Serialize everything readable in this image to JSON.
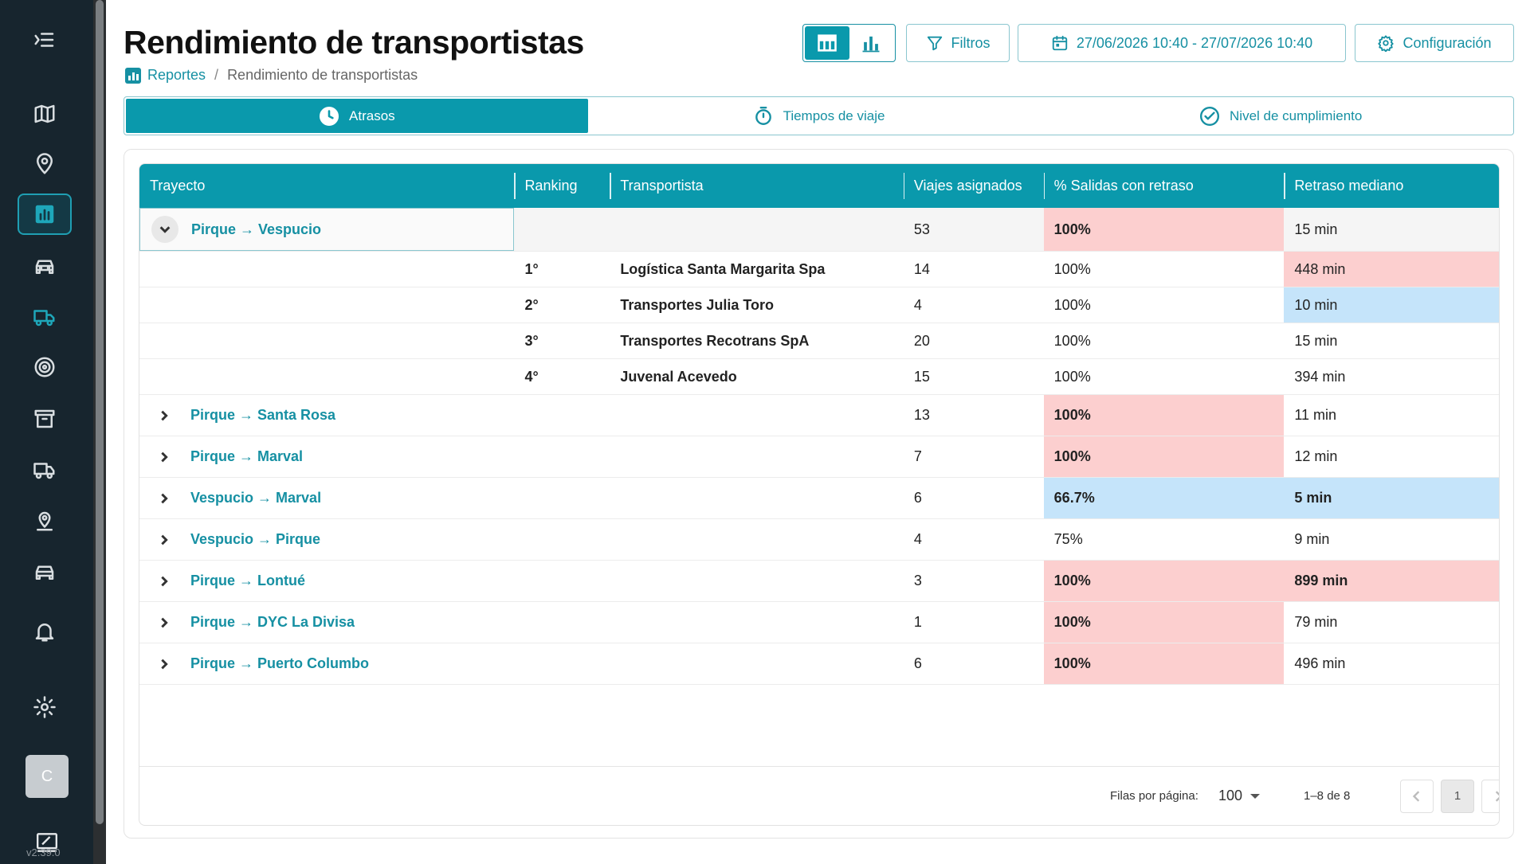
{
  "sidebar": {
    "menu_icon": "menu-collapse-icon",
    "items": [
      {
        "icon": "map-icon"
      },
      {
        "icon": "location-pin-icon"
      },
      {
        "icon": "bar-chart-icon",
        "active": true
      },
      {
        "icon": "car-icon"
      },
      {
        "icon": "truck-icon"
      },
      {
        "icon": "target-icon"
      },
      {
        "icon": "archive-icon"
      },
      {
        "icon": "delivery-truck-icon"
      },
      {
        "icon": "map-marker-icon"
      },
      {
        "icon": "vehicle-icon"
      },
      {
        "icon": "bell-icon"
      },
      {
        "icon": "gear-icon"
      }
    ],
    "avatar_letter": "C",
    "version": "v2.39.0"
  },
  "header": {
    "title": "Rendimiento de transportistas",
    "breadcrumb": {
      "root": "Reportes",
      "separator": "/",
      "current": "Rendimiento de transportistas"
    }
  },
  "toolbar": {
    "filters_label": "Filtros",
    "date_range": "27/06/2026 10:40 - 27/07/2026 10:40",
    "config_label": "Configuración"
  },
  "tabs": [
    {
      "label": "Atrasos",
      "active": true
    },
    {
      "label": "Tiempos de viaje"
    },
    {
      "label": "Nivel de cumplimiento"
    }
  ],
  "table": {
    "columns": [
      "Trayecto",
      "Ranking",
      "Transportista",
      "Viajes asignados",
      "% Salidas con retraso",
      "Retraso mediano"
    ],
    "groups": [
      {
        "route": "Pirque → Vespucio",
        "trips": "53",
        "pct": "100%",
        "pct_hl": "red",
        "delay": "15 min",
        "delay_hl": "",
        "expanded": true,
        "carriers": [
          {
            "rank": "1°",
            "name": "Logística Santa Margarita Spa",
            "trips": "14",
            "pct": "100%",
            "delay": "448 min",
            "delay_hl": "red"
          },
          {
            "rank": "2°",
            "name": "Transportes Julia Toro",
            "trips": "4",
            "pct": "100%",
            "delay": "10 min",
            "delay_hl": "blue"
          },
          {
            "rank": "3°",
            "name": "Transportes Recotrans SpA",
            "trips": "20",
            "pct": "100%",
            "delay": "15 min",
            "delay_hl": ""
          },
          {
            "rank": "4°",
            "name": "Juvenal Acevedo",
            "trips": "15",
            "pct": "100%",
            "delay": "394 min",
            "delay_hl": ""
          }
        ]
      },
      {
        "route": "Pirque → Santa Rosa",
        "trips": "13",
        "pct": "100%",
        "pct_hl": "red",
        "delay": "11 min",
        "delay_hl": ""
      },
      {
        "route": "Pirque → Marval",
        "trips": "7",
        "pct": "100%",
        "pct_hl": "red",
        "delay": "12 min",
        "delay_hl": ""
      },
      {
        "route": "Vespucio → Marval",
        "trips": "6",
        "pct": "66.7%",
        "pct_hl": "blue",
        "delay": "5 min",
        "delay_hl": "blue"
      },
      {
        "route": "Vespucio → Pirque",
        "trips": "4",
        "pct": "75%",
        "pct_hl": "",
        "delay": "9 min",
        "delay_hl": ""
      },
      {
        "route": "Pirque → Lontué",
        "trips": "3",
        "pct": "100%",
        "pct_hl": "red",
        "delay": "899 min",
        "delay_hl": "red"
      },
      {
        "route": "Pirque → DYC La Divisa",
        "trips": "1",
        "pct": "100%",
        "pct_hl": "red",
        "delay": "79 min",
        "delay_hl": ""
      },
      {
        "route": "Pirque → Puerto Columbo",
        "trips": "6",
        "pct": "100%",
        "pct_hl": "red",
        "delay": "496 min",
        "delay_hl": ""
      }
    ]
  },
  "pagination": {
    "rows_label": "Filas por página:",
    "rows_value": "100",
    "range": "1–8 de 8",
    "current_page": "1"
  }
}
